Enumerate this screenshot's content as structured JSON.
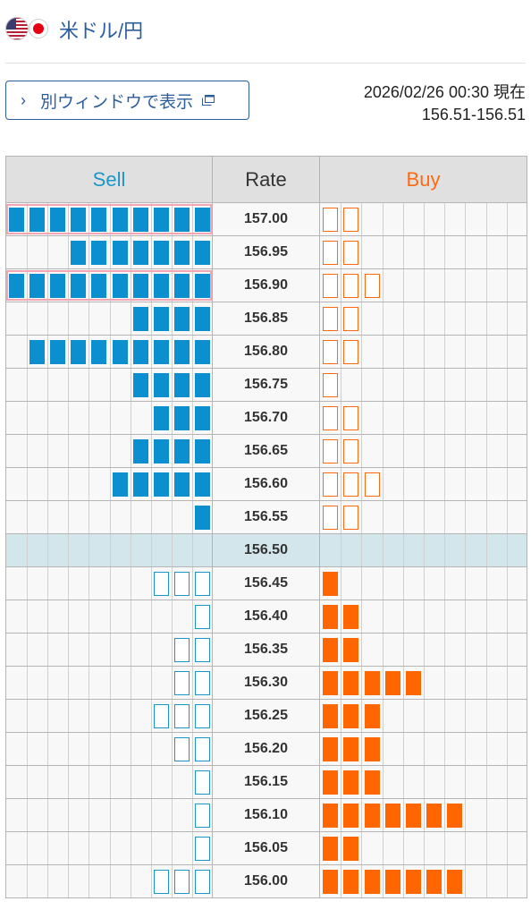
{
  "header": {
    "title": "米ドル/円",
    "flag_left": "us-flag-icon",
    "flag_right": "jp-flag-icon"
  },
  "popout": {
    "chevron": "›",
    "label": "別ウィンドウで表示",
    "icon": "new-window-icon"
  },
  "timestamp": "2026/02/26 00:30 現在",
  "price_range": "156.51-156.51",
  "table": {
    "headers": {
      "sell": "Sell",
      "rate": "Rate",
      "buy": "Buy"
    },
    "rows": [
      {
        "rate": "157.00",
        "sell": 10,
        "sell_type": "filled",
        "buy": 2,
        "buy_type": "outline",
        "mark": true
      },
      {
        "rate": "156.95",
        "sell": 7,
        "sell_type": "filled",
        "buy": 2,
        "buy_type": "outline"
      },
      {
        "rate": "156.90",
        "sell": 10,
        "sell_type": "filled",
        "buy": 3,
        "buy_type": "outline",
        "mark": true
      },
      {
        "rate": "156.85",
        "sell": 4,
        "sell_type": "filled",
        "buy": 2,
        "buy_type": "outline"
      },
      {
        "rate": "156.80",
        "sell": 9,
        "sell_type": "filled",
        "buy": 2,
        "buy_type": "outline"
      },
      {
        "rate": "156.75",
        "sell": 4,
        "sell_type": "filled",
        "buy": 1,
        "buy_type": "outline"
      },
      {
        "rate": "156.70",
        "sell": 3,
        "sell_type": "filled",
        "buy": 2,
        "buy_type": "outline"
      },
      {
        "rate": "156.65",
        "sell": 4,
        "sell_type": "filled",
        "buy": 2,
        "buy_type": "outline"
      },
      {
        "rate": "156.60",
        "sell": 5,
        "sell_type": "filled",
        "buy": 3,
        "buy_type": "outline"
      },
      {
        "rate": "156.55",
        "sell": 1,
        "sell_type": "filled",
        "buy": 2,
        "buy_type": "outline"
      },
      {
        "rate": "156.50",
        "sell": 0,
        "sell_type": "none",
        "buy": 0,
        "buy_type": "none",
        "current": true
      },
      {
        "rate": "156.45",
        "sell": 3,
        "sell_type": "outline",
        "buy": 1,
        "buy_type": "filled"
      },
      {
        "rate": "156.40",
        "sell": 1,
        "sell_type": "outline",
        "buy": 2,
        "buy_type": "filled"
      },
      {
        "rate": "156.35",
        "sell": 2,
        "sell_type": "outline",
        "buy": 2,
        "buy_type": "filled"
      },
      {
        "rate": "156.30",
        "sell": 2,
        "sell_type": "outline",
        "buy": 5,
        "buy_type": "filled"
      },
      {
        "rate": "156.25",
        "sell": 3,
        "sell_type": "outline",
        "buy": 3,
        "buy_type": "filled"
      },
      {
        "rate": "156.20",
        "sell": 2,
        "sell_type": "outline",
        "buy": 3,
        "buy_type": "filled"
      },
      {
        "rate": "156.15",
        "sell": 1,
        "sell_type": "outline",
        "buy": 3,
        "buy_type": "filled"
      },
      {
        "rate": "156.10",
        "sell": 1,
        "sell_type": "outline",
        "buy": 7,
        "buy_type": "filled"
      },
      {
        "rate": "156.05",
        "sell": 1,
        "sell_type": "outline",
        "buy": 2,
        "buy_type": "filled"
      },
      {
        "rate": "156.00",
        "sell": 3,
        "sell_type": "outline",
        "buy": 7,
        "buy_type": "filled"
      }
    ]
  },
  "colors": {
    "sell": "#0b8fcf",
    "buy": "#ff6600",
    "current_row": "#d2e6ec",
    "highlight_border": "#f3a7b5",
    "title": "#2b5d9e"
  }
}
